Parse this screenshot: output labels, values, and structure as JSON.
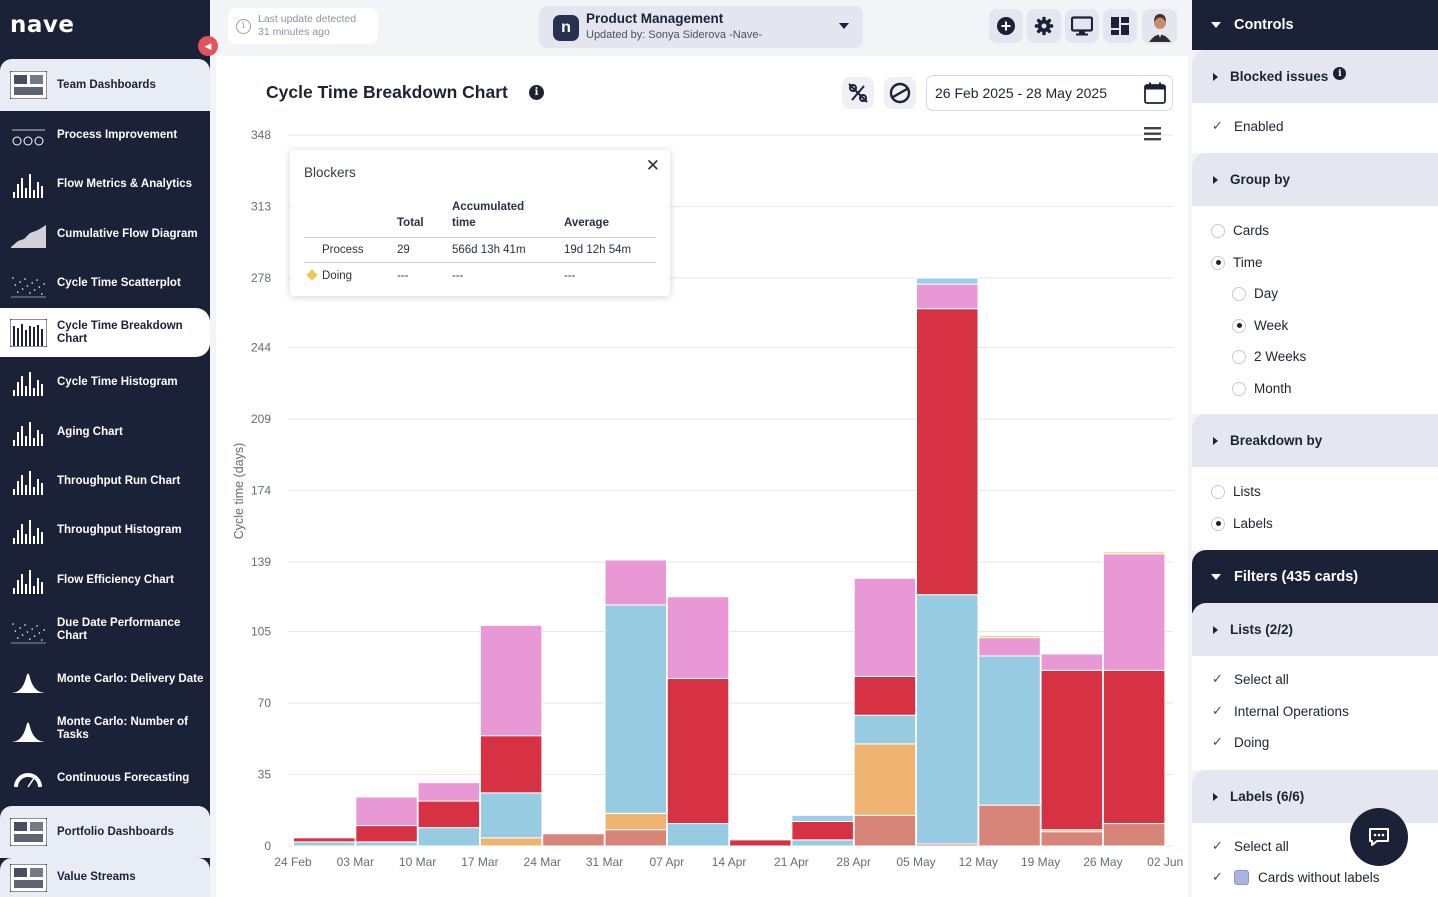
{
  "app": {
    "logo": "nave"
  },
  "sidebar": {
    "items": [
      {
        "label": "Team Dashboards",
        "icon": "dashboard-grid-icon",
        "kind": "section"
      },
      {
        "label": "Process Improvement",
        "icon": "gauges-icon",
        "kind": "item"
      },
      {
        "label": "Flow Metrics & Analytics",
        "icon": "bar-chart-icon",
        "kind": "item"
      },
      {
        "label": "Cumulative Flow Diagram",
        "icon": "area-chart-icon",
        "kind": "item"
      },
      {
        "label": "Cycle Time Scatterplot",
        "icon": "scatter-icon",
        "kind": "item"
      },
      {
        "label": "Cycle Time Breakdown Chart",
        "icon": "stacked-bars-icon",
        "kind": "active"
      },
      {
        "label": "Cycle Time Histogram",
        "icon": "histogram-icon",
        "kind": "item"
      },
      {
        "label": "Aging Chart",
        "icon": "aging-icon",
        "kind": "item"
      },
      {
        "label": "Throughput Run Chart",
        "icon": "run-chart-icon",
        "kind": "item"
      },
      {
        "label": "Throughput Histogram",
        "icon": "histogram-icon",
        "kind": "item"
      },
      {
        "label": "Flow Efficiency Chart",
        "icon": "efficiency-icon",
        "kind": "item"
      },
      {
        "label": "Due Date Performance Chart",
        "icon": "due-date-icon",
        "kind": "item"
      },
      {
        "label": "Monte Carlo: Delivery Date",
        "icon": "bell-curve-icon",
        "kind": "item"
      },
      {
        "label": "Monte Carlo: Number of Tasks",
        "icon": "bell-curve-icon",
        "kind": "item"
      },
      {
        "label": "Continuous Forecasting",
        "icon": "forecast-gauge-icon",
        "kind": "item"
      },
      {
        "label": "Portfolio Dashboards",
        "icon": "portfolio-icon",
        "kind": "section"
      },
      {
        "label": "Value Streams",
        "icon": "value-stream-icon",
        "kind": "section"
      }
    ]
  },
  "topbar": {
    "last_update_line1": "Last update detected",
    "last_update_line2": "31 minutes ago",
    "board_logo": "n",
    "board_name": "Product Management",
    "board_updated": "Updated by: Sonya Siderova -Nave-"
  },
  "chart_header": {
    "title": "Cycle Time Breakdown Chart",
    "date_range": "26 Feb 2025 - 28 May 2025"
  },
  "tooltip": {
    "title": "Blockers",
    "col_total": "Total",
    "col_accumulated_1": "Accumulated",
    "col_accumulated_2": "time",
    "col_average": "Average",
    "rows": [
      {
        "name": "Process",
        "total": "29",
        "accumulated": "566d 13h 41m",
        "average": "19d 12h 54m"
      },
      {
        "name": "Doing",
        "total": "---",
        "accumulated": "---",
        "average": "---"
      }
    ]
  },
  "chart_data": {
    "type": "bar",
    "stacked": true,
    "ylabel": "Cycle time (days)",
    "ylim": [
      0,
      348
    ],
    "yticks": [
      0,
      35,
      70,
      105,
      139,
      174,
      209,
      244,
      278,
      313,
      348
    ],
    "categories": [
      "24 Feb",
      "03 Mar",
      "10 Mar",
      "17 Mar",
      "24 Mar",
      "31 Mar",
      "07 Apr",
      "14 Apr",
      "21 Apr",
      "28 Apr",
      "05 May",
      "12 May",
      "19 May",
      "26 May",
      "02 Jun"
    ],
    "colors": [
      "#d78479",
      "#f0b472",
      "#96cbe2",
      "#d63243",
      "#e898d4",
      "#9ecfe8",
      "#f2cd7e"
    ],
    "series": [
      {
        "values": [
          0,
          0,
          0,
          0,
          6,
          8,
          0,
          0,
          0,
          15,
          1,
          20,
          7,
          11,
          0
        ]
      },
      {
        "values": [
          0,
          0,
          0,
          4,
          0,
          8,
          0,
          0,
          0,
          35,
          0,
          0,
          1,
          0,
          0
        ]
      },
      {
        "values": [
          2,
          2,
          9,
          22,
          0,
          102,
          11,
          0,
          3,
          14,
          122,
          73,
          0,
          0,
          0
        ]
      },
      {
        "values": [
          2,
          8,
          13,
          28,
          0,
          0,
          71,
          3,
          9,
          19,
          140,
          0,
          78,
          75,
          0
        ]
      },
      {
        "values": [
          0,
          14,
          9,
          54,
          0,
          22,
          40,
          0,
          0,
          48,
          12,
          9,
          8,
          57,
          0
        ]
      },
      {
        "values": [
          0,
          0,
          0,
          0,
          0,
          0,
          0,
          0,
          3,
          0,
          3,
          0,
          0,
          0,
          0
        ]
      },
      {
        "values": [
          0,
          0,
          0,
          0,
          0,
          0,
          0,
          0,
          0,
          0,
          0,
          1,
          0,
          1,
          0
        ]
      }
    ]
  },
  "panel": {
    "controls": "Controls",
    "blocked_issues": "Blocked issues",
    "enabled": "Enabled",
    "group_by": "Group by",
    "cards": "Cards",
    "time": "Time",
    "day": "Day",
    "week": "Week",
    "two_weeks": "2 Weeks",
    "month": "Month",
    "breakdown_by": "Breakdown by",
    "lists": "Lists",
    "labels": "Labels",
    "filters": "Filters (435 cards)",
    "lists_count": "Lists  (2/2)",
    "select_all": "Select all",
    "internal_operations": "Internal Operations",
    "doing": "Doing",
    "labels_count": "Labels  (6/6)",
    "select_all_labels": "Select all",
    "cards_without_labels": "Cards without labels"
  }
}
